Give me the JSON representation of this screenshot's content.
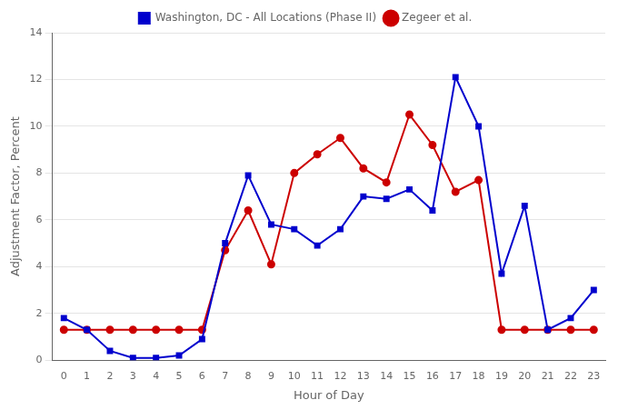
{
  "chart_data": {
    "type": "line",
    "x": [
      0,
      1,
      2,
      3,
      4,
      5,
      6,
      7,
      8,
      9,
      10,
      11,
      12,
      13,
      14,
      15,
      16,
      17,
      18,
      19,
      20,
      21,
      22,
      23
    ],
    "series": [
      {
        "name": "Washington, DC - All Locations (Phase II)",
        "color": "#0000CD",
        "marker": "square",
        "values": [
          1.8,
          1.3,
          0.4,
          0.1,
          0.1,
          0.2,
          0.9,
          5.0,
          7.9,
          5.8,
          5.6,
          4.9,
          5.6,
          7.0,
          6.9,
          7.3,
          6.4,
          12.1,
          10.0,
          3.7,
          6.6,
          1.3,
          1.8,
          3.0
        ]
      },
      {
        "name": "Zegeer et al.",
        "color": "#CC0000",
        "marker": "circle",
        "values": [
          1.3,
          1.3,
          1.3,
          1.3,
          1.3,
          1.3,
          1.3,
          4.7,
          6.4,
          4.1,
          8.0,
          8.8,
          9.5,
          8.2,
          7.6,
          10.5,
          9.2,
          7.2,
          7.7,
          1.3,
          1.3,
          1.3,
          1.3,
          1.3
        ]
      }
    ],
    "xlabel": "Hour of Day",
    "ylabel": "Adjustment Factor, Percent",
    "xlim": [
      -0.5,
      23.5
    ],
    "xticks": [
      0,
      1,
      2,
      3,
      4,
      5,
      6,
      7,
      8,
      9,
      10,
      11,
      12,
      13,
      14,
      15,
      16,
      17,
      18,
      19,
      20,
      21,
      22,
      23
    ],
    "ylim": [
      0,
      14
    ],
    "yticks": [
      0,
      2,
      4,
      6,
      8,
      10,
      12,
      14
    ],
    "grid": "y",
    "legend": "top"
  }
}
